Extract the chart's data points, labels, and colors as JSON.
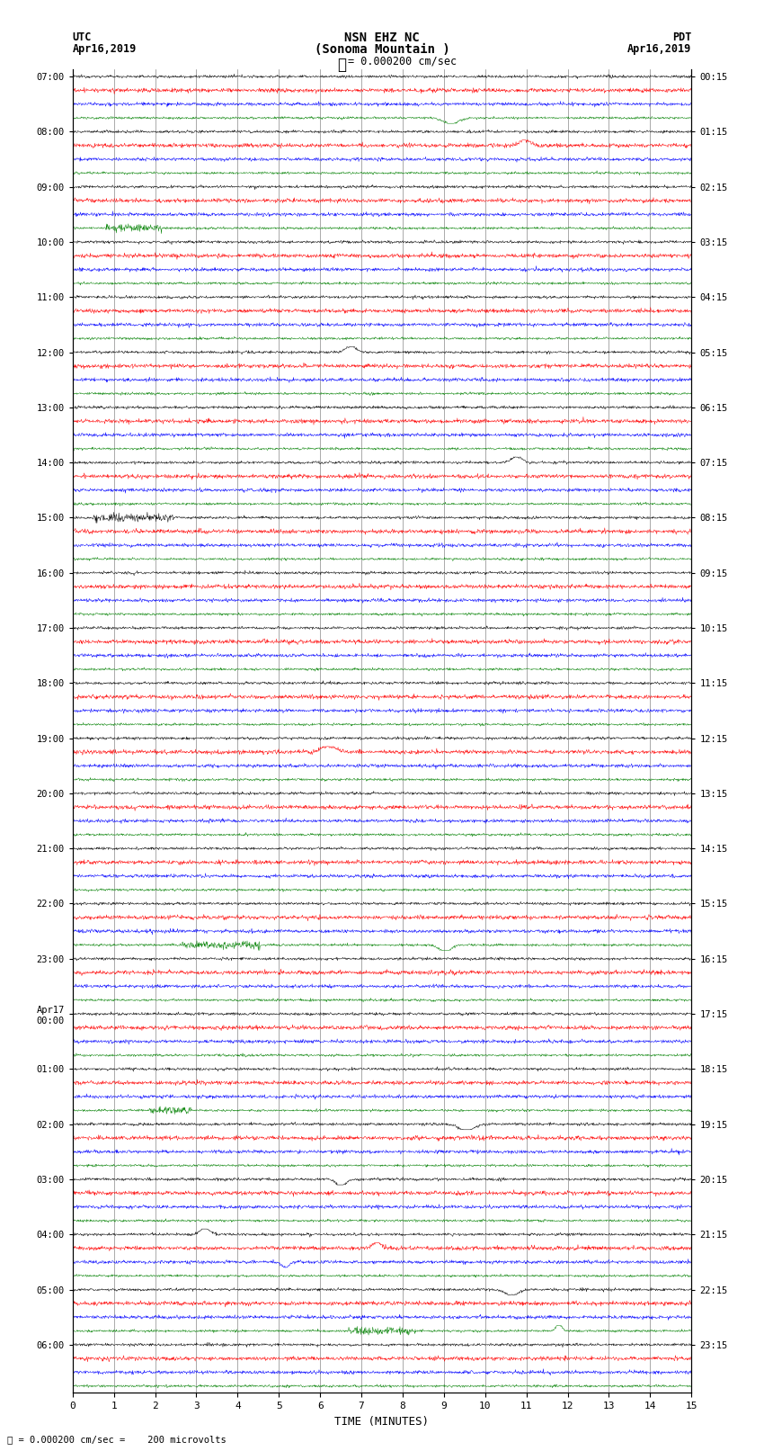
{
  "title_line1": "NSN EHZ NC",
  "title_line2": "(Sonoma Mountain )",
  "scale_label": "= 0.000200 cm/sec",
  "bottom_label": "= 0.000200 cm/sec =    200 microvolts",
  "utc_label": "UTC",
  "utc_date": "Apr16,2019",
  "pdt_label": "PDT",
  "pdt_date": "Apr16,2019",
  "xlabel": "TIME (MINUTES)",
  "background_color": "#ffffff",
  "trace_colors": [
    "black",
    "red",
    "blue",
    "green"
  ],
  "num_hour_groups": 24,
  "traces_per_group": 4,
  "minutes_per_row": 15,
  "left_labels_utc": [
    "07:00",
    "08:00",
    "09:00",
    "10:00",
    "11:00",
    "12:00",
    "13:00",
    "14:00",
    "15:00",
    "16:00",
    "17:00",
    "18:00",
    "19:00",
    "20:00",
    "21:00",
    "22:00",
    "23:00",
    "Apr17\n00:00",
    "01:00",
    "02:00",
    "03:00",
    "04:00",
    "05:00",
    "06:00"
  ],
  "right_labels_pdt": [
    "00:15",
    "01:15",
    "02:15",
    "03:15",
    "04:15",
    "05:15",
    "06:15",
    "07:15",
    "08:15",
    "09:15",
    "10:15",
    "11:15",
    "12:15",
    "13:15",
    "14:15",
    "15:15",
    "16:15",
    "17:15",
    "18:15",
    "19:15",
    "20:15",
    "21:15",
    "22:15",
    "23:15"
  ],
  "grid_color": "#888888",
  "grid_linewidth": 0.5,
  "trace_amplitude": 0.4,
  "noise_scale": 0.06,
  "figsize": [
    8.5,
    16.13
  ],
  "dpi": 100
}
